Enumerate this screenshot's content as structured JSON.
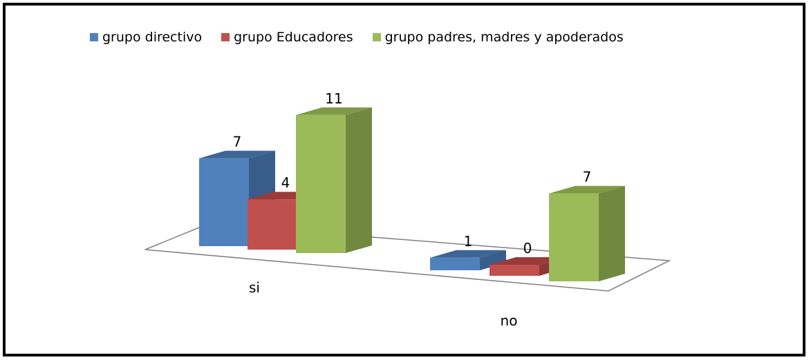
{
  "chart_data": {
    "type": "bar",
    "style": "3d-clustered-column",
    "categories": [
      "si",
      "no"
    ],
    "series": [
      {
        "name": "grupo directivo",
        "values": [
          7,
          1
        ],
        "color": "#4F81BD",
        "color_side": "#385D8A",
        "color_top": "#3D6595"
      },
      {
        "name": "grupo Educadores",
        "values": [
          4,
          0
        ],
        "color": "#C0504D",
        "color_side": "#8C3836",
        "color_top": "#9B3B39"
      },
      {
        "name": "grupo padres, madres y apoderados",
        "values": [
          11,
          7
        ],
        "color": "#9BBB59",
        "color_side": "#71893F",
        "color_top": "#7E9A47"
      }
    ],
    "legend": "top",
    "grid": false,
    "ylim": [
      0,
      11
    ]
  }
}
